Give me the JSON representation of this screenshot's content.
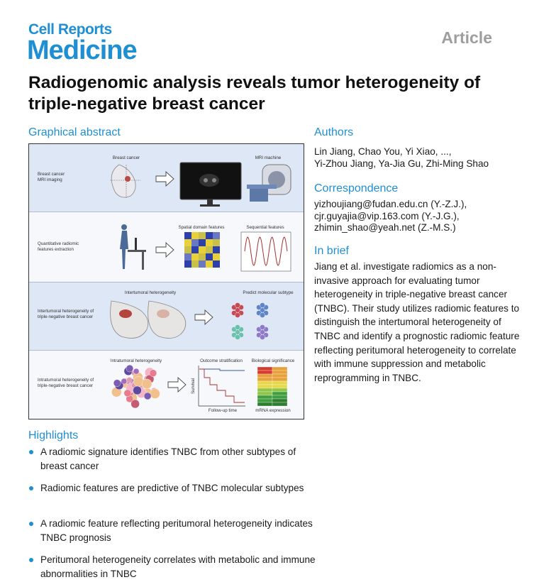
{
  "header": {
    "journal_line1": "Cell Reports",
    "journal_line2": "Medicine",
    "article_type": "Article"
  },
  "title": "Radiogenomic analysis reveals tumor heterogeneity of triple-negative breast cancer",
  "graphical_abstract": {
    "heading": "Graphical abstract",
    "rows": [
      {
        "label": [
          "Breast cancer",
          "MRI imaging"
        ],
        "captions": [
          "Breast cancer",
          "MRI machine"
        ]
      },
      {
        "label": [
          "Quantitative radiomic",
          "features extraction"
        ],
        "captions": [
          "Spatial domain features",
          "Sequential features"
        ]
      },
      {
        "label": [
          "Intertumoral heterogeneity of",
          "triple-negative breast cancer"
        ],
        "captions": [
          "Intertumoral heterogeneity",
          "Predict molecular subtype"
        ]
      },
      {
        "label": [
          "Intratumoral heterogeneity of",
          "triple-negative breast cancer"
        ],
        "captions": [
          "Intratumoral heterogeneity",
          "Outcome stratification",
          "Biological significance",
          "Survival",
          "Follow-up time",
          "mRNA expression"
        ]
      }
    ]
  },
  "authors": {
    "heading": "Authors",
    "lines": [
      "Lin Jiang, Chao You, Yi Xiao, ...,",
      "Yi-Zhou Jiang, Ya-Jia Gu, Zhi-Ming Shao"
    ]
  },
  "correspondence": {
    "heading": "Correspondence",
    "lines": [
      "yizhoujiang@fudan.edu.cn (Y.-Z.J.),",
      "cjr.guyajia@vip.163.com (Y.-J.G.),",
      "zhimin_shao@yeah.net (Z.-M.S.)"
    ]
  },
  "in_brief": {
    "heading": "In brief",
    "text": "Jiang et al. investigate radiomics as a non-invasive approach for evaluating tumor heterogeneity in triple-negative breast cancer (TNBC). Their study utilizes radiomic features to distinguish the intertumoral heterogeneity of TNBC and identify a prognostic radiomic feature reflecting peritumoral heterogeneity to correlate with immune suppression and metabolic reprogramming in TNBC."
  },
  "highlights": {
    "heading": "Highlights",
    "items": [
      "A radiomic signature identifies TNBC from other subtypes of breast cancer",
      "Radiomic features are predictive of TNBC molecular subtypes",
      "A radiomic feature reflecting peritumoral heterogeneity indicates TNBC prognosis",
      "Peritumoral heterogeneity correlates with metabolic and immune abnormalities in TNBC"
    ]
  }
}
